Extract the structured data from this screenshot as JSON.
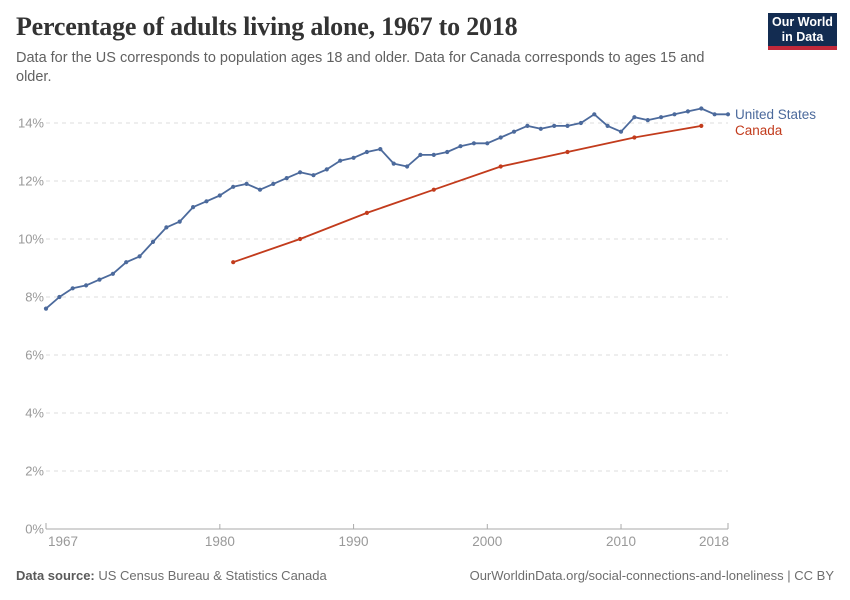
{
  "header": {
    "title": "Percentage of adults living alone, 1967 to 2018",
    "subtitle": "Data for the US corresponds to population ages 18 and older. Data for Canada corresponds to ages 15 and older.",
    "logo": {
      "line1": "Our World",
      "line2": "in Data"
    }
  },
  "chart_data": {
    "type": "line",
    "title": "Percentage of adults living alone, 1967 to 2018",
    "xlabel": "",
    "ylabel": "",
    "x_range": [
      1967,
      2018
    ],
    "ylim": [
      0,
      14.6
    ],
    "yticks": [
      0,
      2,
      4,
      6,
      8,
      10,
      12,
      14
    ],
    "ytick_labels": [
      "0%",
      "2%",
      "4%",
      "6%",
      "8%",
      "10%",
      "12%",
      "14%"
    ],
    "xticks": [
      1967,
      1980,
      1990,
      2000,
      2010,
      2018
    ],
    "grid": "horizontal-dashed",
    "legend_position": "right-of-line-ends",
    "colors": {
      "axis": "#aaaaaa",
      "gridline": "#dcdcdc",
      "tick_label": "#999999"
    },
    "series": [
      {
        "name": "United States",
        "color": "#4C6A9C",
        "x": [
          1967,
          1968,
          1969,
          1970,
          1971,
          1972,
          1973,
          1974,
          1975,
          1976,
          1977,
          1978,
          1979,
          1980,
          1981,
          1982,
          1983,
          1984,
          1985,
          1986,
          1987,
          1988,
          1989,
          1990,
          1991,
          1992,
          1993,
          1994,
          1995,
          1996,
          1997,
          1998,
          1999,
          2000,
          2001,
          2002,
          2003,
          2004,
          2005,
          2006,
          2007,
          2008,
          2009,
          2010,
          2011,
          2012,
          2013,
          2014,
          2015,
          2016,
          2017,
          2018
        ],
        "values": [
          7.6,
          8.0,
          8.3,
          8.4,
          8.6,
          8.8,
          9.2,
          9.4,
          9.9,
          10.4,
          10.6,
          11.1,
          11.3,
          11.5,
          11.8,
          11.9,
          11.7,
          11.9,
          12.1,
          12.3,
          12.2,
          12.4,
          12.7,
          12.8,
          13.0,
          13.1,
          12.6,
          12.5,
          12.9,
          12.9,
          13.0,
          13.2,
          13.3,
          13.3,
          13.5,
          13.7,
          13.9,
          13.8,
          13.9,
          13.9,
          14.0,
          14.3,
          13.9,
          13.7,
          14.2,
          14.1,
          14.2,
          14.3,
          14.4,
          14.5,
          14.3,
          14.3
        ]
      },
      {
        "name": "Canada",
        "color": "#C23B1C",
        "x": [
          1981,
          1986,
          1991,
          1996,
          2001,
          2006,
          2011,
          2016
        ],
        "values": [
          9.2,
          10.0,
          10.9,
          11.7,
          12.5,
          13.0,
          13.5,
          13.9
        ]
      }
    ]
  },
  "footer": {
    "source_label": "Data source:",
    "source_text": "US Census Bureau & Statistics Canada",
    "attribution": "OurWorldinData.org/social-connections-and-loneliness | CC BY"
  }
}
